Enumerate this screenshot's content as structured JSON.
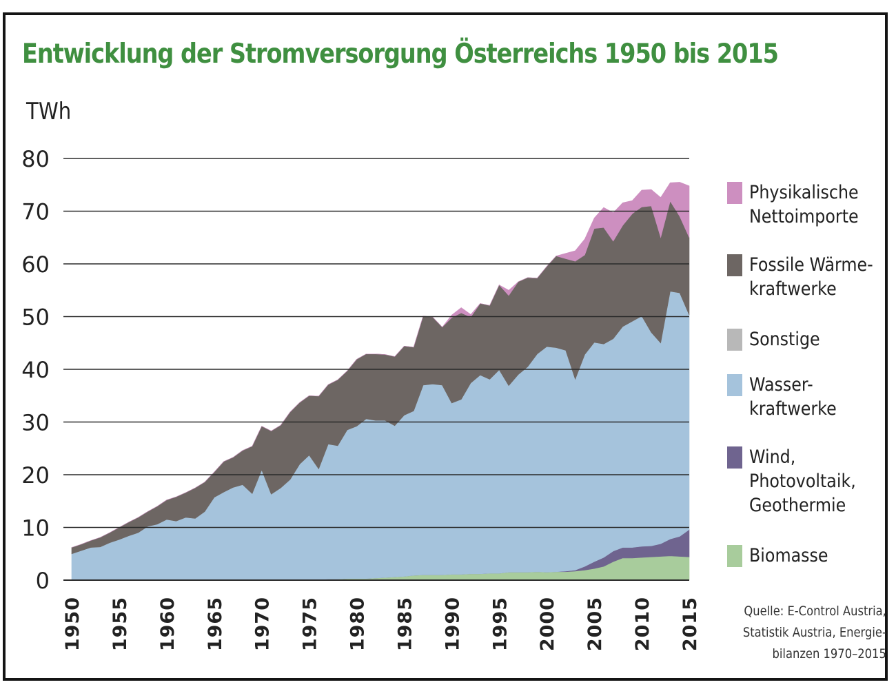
{
  "chart_data": {
    "type": "area",
    "stacked": true,
    "title": "Entwicklung der Stromversorgung Österreichs 1950 bis 2015",
    "ylabel": "TWh",
    "xlabel": "",
    "ylim": [
      0,
      80
    ],
    "xlim": [
      1950,
      2015
    ],
    "yticks": [
      "0",
      "10",
      "20",
      "30",
      "40",
      "50",
      "60",
      "70",
      "80"
    ],
    "xticks": [
      "1950",
      "1955",
      "1960",
      "1965",
      "1970",
      "1975",
      "1980",
      "1985",
      "1990",
      "1995",
      "2000",
      "2005",
      "2010",
      "2015"
    ],
    "grid": "horizontal",
    "legend_position": "right",
    "x": [
      1950,
      1951,
      1952,
      1953,
      1954,
      1955,
      1956,
      1957,
      1958,
      1959,
      1960,
      1961,
      1962,
      1963,
      1964,
      1965,
      1966,
      1967,
      1968,
      1969,
      1970,
      1971,
      1972,
      1973,
      1974,
      1975,
      1976,
      1977,
      1978,
      1979,
      1980,
      1981,
      1982,
      1983,
      1984,
      1985,
      1986,
      1987,
      1988,
      1989,
      1990,
      1991,
      1992,
      1993,
      1994,
      1995,
      1996,
      1997,
      1998,
      1999,
      2000,
      2001,
      2002,
      2003,
      2004,
      2005,
      2006,
      2007,
      2008,
      2009,
      2010,
      2011,
      2012,
      2013,
      2014,
      2015
    ],
    "series": [
      {
        "name": "Biomasse",
        "color": "#a8cc9c",
        "values": [
          0,
          0,
          0,
          0,
          0,
          0,
          0,
          0,
          0,
          0,
          0,
          0,
          0,
          0,
          0,
          0,
          0,
          0,
          0,
          0,
          0,
          0,
          0.1,
          0.1,
          0.1,
          0.1,
          0.1,
          0.2,
          0.2,
          0.3,
          0.3,
          0.3,
          0.4,
          0.5,
          0.6,
          0.7,
          0.9,
          1.0,
          1.0,
          1.0,
          1.1,
          1.1,
          1.2,
          1.2,
          1.3,
          1.3,
          1.5,
          1.5,
          1.5,
          1.6,
          1.5,
          1.6,
          1.6,
          1.7,
          1.9,
          2.2,
          2.6,
          3.5,
          4.2,
          4.2,
          4.3,
          4.4,
          4.5,
          4.6,
          4.5,
          4.4
        ]
      },
      {
        "name": "Wind, Photovoltaik, Geothermie",
        "color": "#6f648f",
        "values": [
          0,
          0,
          0,
          0,
          0,
          0,
          0,
          0,
          0,
          0,
          0,
          0,
          0,
          0,
          0,
          0,
          0,
          0,
          0,
          0,
          0,
          0,
          0,
          0,
          0,
          0,
          0,
          0,
          0,
          0,
          0,
          0,
          0,
          0,
          0,
          0,
          0,
          0,
          0,
          0,
          0,
          0,
          0,
          0,
          0,
          0,
          0,
          0,
          0,
          0,
          0,
          0,
          0.1,
          0.2,
          0.7,
          1.3,
          1.7,
          2.0,
          2.0,
          2.0,
          2.1,
          2.1,
          2.4,
          3.2,
          3.8,
          5.2
        ]
      },
      {
        "name": "Wasserkraftwerke",
        "color": "#a5c3dc",
        "values": [
          5.0,
          5.6,
          6.2,
          6.3,
          7.1,
          7.7,
          8.4,
          9.0,
          10.2,
          10.6,
          11.5,
          11.2,
          11.9,
          11.7,
          13.0,
          15.7,
          16.7,
          17.6,
          18.1,
          16.4,
          20.9,
          16.3,
          17.4,
          19.0,
          21.9,
          23.6,
          21.0,
          25.6,
          25.3,
          28.2,
          28.9,
          30.3,
          29.9,
          29.8,
          28.7,
          30.6,
          31.2,
          36.0,
          36.2,
          36.0,
          32.5,
          33.2,
          36.2,
          37.7,
          36.8,
          38.6,
          35.4,
          37.5,
          39.0,
          41.3,
          42.8,
          42.5,
          41.9,
          36.2,
          40.2,
          41.6,
          40.5,
          40.3,
          41.9,
          42.9,
          43.7,
          40.5,
          38.1,
          47.0,
          46.2,
          40.7
        ]
      },
      {
        "name": "Sonstige",
        "color": "#b8b8b8",
        "values": [
          0,
          0,
          0,
          0,
          0,
          0,
          0,
          0,
          0,
          0,
          0,
          0,
          0,
          0,
          0,
          0,
          0,
          0,
          0,
          0,
          0,
          0,
          0,
          0,
          0,
          0,
          0,
          0,
          0,
          0,
          0,
          0,
          0,
          0,
          0,
          0,
          0,
          0,
          0,
          0,
          0,
          0,
          0,
          0,
          0,
          0,
          0,
          0,
          0,
          0,
          0,
          0,
          0,
          0,
          0,
          0,
          0,
          0,
          0,
          0,
          0,
          0,
          0,
          0,
          0,
          0
        ]
      },
      {
        "name": "Fossile Wärmekraftwerke",
        "color": "#6d6663",
        "values": [
          1.2,
          1.2,
          1.3,
          1.8,
          1.9,
          2.3,
          2.6,
          2.9,
          2.8,
          3.4,
          3.7,
          4.6,
          4.7,
          5.8,
          5.6,
          4.8,
          5.8,
          5.7,
          6.5,
          9.0,
          8.3,
          12.0,
          11.9,
          12.8,
          11.7,
          11.3,
          13.8,
          11.3,
          12.5,
          11.2,
          12.7,
          12.3,
          12.6,
          12.5,
          13.1,
          13.1,
          12.1,
          13.1,
          12.7,
          11.0,
          16.2,
          16.4,
          12.5,
          13.6,
          14.0,
          16.1,
          17.1,
          17.6,
          16.9,
          14.4,
          15.2,
          17.4,
          17.4,
          22.4,
          18.9,
          21.6,
          22.1,
          18.5,
          19.2,
          20.4,
          20.7,
          24.0,
          20.0,
          17.1,
          14.5,
          14.7
        ]
      },
      {
        "name": "Physikalische Nettoimporte",
        "color": "#cd8fc0",
        "values": [
          0,
          0,
          0,
          0,
          0,
          0,
          0,
          0,
          0,
          0,
          0,
          0,
          0,
          0,
          0,
          0,
          0,
          0,
          0,
          0,
          0,
          0,
          0,
          0,
          0,
          0,
          0,
          0,
          0,
          0,
          0,
          0,
          0,
          0,
          0,
          0,
          0,
          0,
          0,
          0,
          0.5,
          1.0,
          0.5,
          0,
          0,
          0,
          1.0,
          0,
          0,
          0,
          0,
          0,
          1.0,
          2.0,
          3.0,
          2.0,
          3.8,
          5.4,
          4.3,
          2.5,
          3.2,
          3.1,
          7.6,
          3.5,
          6.5,
          9.8
        ]
      }
    ]
  },
  "legend": [
    {
      "label": "Physikalische\nNettoimporte",
      "color": "#cd8fc0"
    },
    {
      "label": "Fossile Wärme-\nkraftwerke",
      "color": "#6d6663"
    },
    {
      "label": "Sonstige",
      "color": "#b8b8b8"
    },
    {
      "label": " Wasser-\n kraftwerke",
      "color": "#a5c3dc"
    },
    {
      "label": "Wind,\nPhotovoltaik,\nGeothermie",
      "color": "#6f648f"
    },
    {
      "label": "Biomasse",
      "color": "#a8cc9c"
    }
  ],
  "source": "Quelle: E-Control Austria,\nStatistik Austria, Energie-\nbilanzen 1970–2015"
}
